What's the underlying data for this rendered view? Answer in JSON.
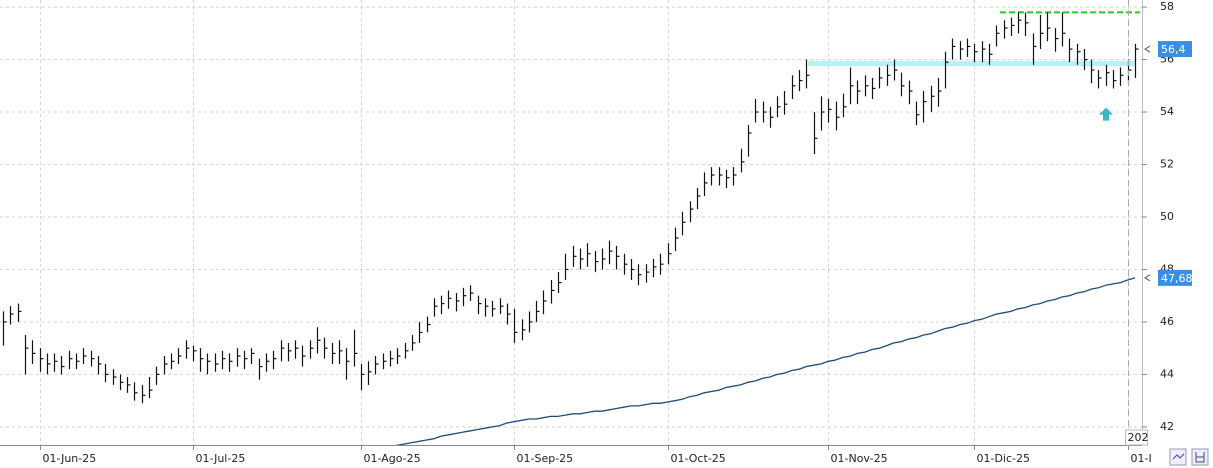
{
  "chart_data": {
    "type": "ohlc",
    "categories": [
      null,
      null,
      null,
      null,
      null,
      "01-Jun-25",
      null,
      null,
      null,
      null,
      null,
      null,
      null,
      null,
      null,
      null,
      null,
      null,
      null,
      null,
      null,
      null,
      null,
      null,
      null,
      null,
      "01-Jul-25",
      null,
      null,
      null,
      null,
      null,
      null,
      null,
      null,
      null,
      null,
      null,
      null,
      null,
      null,
      null,
      null,
      null,
      null,
      null,
      null,
      null,
      null,
      "01-Ago-25",
      null,
      null,
      null,
      null,
      null,
      null,
      null,
      null,
      null,
      null,
      null,
      null,
      null,
      null,
      null,
      null,
      null,
      null,
      null,
      null,
      "01-Sep-25",
      null,
      null,
      null,
      null,
      null,
      null,
      null,
      null,
      null,
      null,
      null,
      null,
      null,
      null,
      null,
      null,
      null,
      null,
      null,
      null,
      "01-Oct-25",
      null,
      null,
      null,
      null,
      null,
      null,
      null,
      null,
      null,
      null,
      null,
      null,
      null,
      null,
      null,
      null,
      null,
      null,
      null,
      null,
      null,
      "01-Nov-25",
      null,
      null,
      null,
      null,
      null,
      null,
      null,
      null,
      null,
      null,
      null,
      null,
      null,
      null,
      null,
      null,
      null,
      null,
      null,
      "01-Dic-25",
      null,
      null,
      null,
      null,
      null,
      null,
      null,
      null,
      null,
      null,
      null,
      null,
      null,
      null,
      null,
      null,
      null,
      null,
      null,
      null,
      "01-I",
      null
    ],
    "high": [
      46.4,
      46.6,
      46.7,
      45.5,
      45.3,
      45.0,
      44.8,
      44.8,
      44.7,
      44.9,
      44.8,
      45.0,
      44.9,
      44.7,
      44.4,
      44.2,
      44.0,
      43.9,
      43.7,
      43.6,
      43.9,
      44.3,
      44.7,
      44.8,
      45.0,
      45.3,
      45.1,
      45.0,
      44.8,
      44.8,
      44.9,
      44.8,
      45.0,
      44.9,
      45.0,
      44.6,
      44.8,
      44.9,
      45.3,
      45.2,
      45.3,
      45.1,
      45.3,
      45.8,
      45.4,
      45.2,
      45.3,
      45.0,
      45.7,
      44.4,
      44.5,
      44.7,
      44.8,
      44.9,
      45.0,
      45.2,
      45.5,
      46.0,
      46.2,
      46.9,
      47.0,
      47.2,
      47.1,
      47.3,
      47.4,
      47.0,
      46.9,
      46.8,
      46.9,
      46.7,
      46.5,
      46.1,
      46.4,
      46.8,
      47.2,
      47.6,
      47.9,
      48.6,
      48.9,
      48.8,
      49.0,
      48.7,
      48.8,
      49.1,
      48.9,
      48.6,
      48.4,
      48.2,
      48.2,
      48.4,
      48.6,
      49.0,
      49.6,
      50.2,
      50.6,
      51.1,
      51.7,
      51.9,
      51.9,
      51.8,
      51.9,
      52.6,
      53.5,
      54.5,
      54.4,
      54.2,
      54.6,
      54.8,
      55.4,
      55.6,
      56.0,
      54.0,
      54.6,
      54.5,
      54.4,
      54.7,
      55.7,
      55.2,
      55.4,
      55.3,
      55.7,
      55.8,
      56.0,
      55.5,
      55.2,
      54.4,
      54.8,
      55.0,
      55.3,
      56.3,
      56.8,
      56.7,
      56.8,
      56.6,
      56.7,
      56.6,
      57.3,
      57.5,
      57.6,
      57.8,
      57.8,
      57.0,
      57.7,
      57.8,
      57.2,
      57.8,
      56.8,
      56.6,
      56.4,
      56.0,
      55.6,
      55.8,
      55.6,
      55.7,
      56.0,
      56.6
    ],
    "low": [
      45.1,
      45.9,
      46.0,
      44.0,
      44.4,
      44.1,
      44.0,
      44.1,
      44.0,
      44.2,
      44.2,
      44.4,
      44.3,
      44.0,
      43.7,
      43.6,
      43.4,
      43.3,
      43.0,
      42.9,
      43.1,
      43.6,
      44.0,
      44.2,
      44.4,
      44.6,
      44.5,
      44.1,
      44.0,
      44.1,
      44.2,
      44.1,
      44.3,
      44.2,
      44.4,
      43.8,
      44.1,
      44.2,
      44.5,
      44.5,
      44.6,
      44.3,
      44.6,
      44.8,
      44.6,
      44.4,
      44.4,
      43.8,
      44.3,
      43.4,
      43.6,
      44.0,
      44.2,
      44.3,
      44.4,
      44.6,
      44.9,
      45.2,
      45.6,
      46.2,
      46.3,
      46.5,
      46.4,
      46.6,
      46.8,
      46.3,
      46.2,
      46.2,
      46.3,
      45.9,
      45.2,
      45.3,
      45.6,
      46.0,
      46.3,
      46.7,
      47.1,
      47.6,
      48.1,
      48.0,
      48.1,
      47.9,
      48.0,
      48.2,
      48.0,
      47.8,
      47.6,
      47.4,
      47.5,
      47.7,
      47.8,
      48.2,
      48.7,
      49.3,
      49.8,
      50.3,
      50.8,
      51.2,
      51.2,
      51.1,
      51.2,
      51.7,
      52.3,
      53.6,
      53.6,
      53.4,
      53.8,
      53.9,
      54.5,
      54.8,
      54.9,
      52.4,
      53.3,
      53.6,
      53.3,
      53.8,
      54.3,
      54.3,
      54.6,
      54.5,
      54.9,
      55.0,
      55.2,
      54.6,
      54.3,
      53.5,
      53.6,
      54.0,
      54.2,
      54.9,
      56.0,
      56.0,
      56.1,
      55.9,
      55.9,
      55.8,
      56.5,
      56.8,
      56.9,
      57.0,
      56.9,
      55.8,
      56.4,
      56.7,
      56.3,
      56.5,
      55.9,
      55.8,
      55.6,
      55.1,
      54.9,
      55.0,
      54.9,
      55.0,
      55.1,
      55.3
    ],
    "close": [
      46.0,
      46.3,
      46.4,
      45.0,
      44.8,
      44.6,
      44.4,
      44.5,
      44.3,
      44.6,
      44.5,
      44.7,
      44.6,
      44.4,
      44.0,
      43.9,
      43.7,
      43.6,
      43.3,
      43.2,
      43.4,
      44.0,
      44.4,
      44.5,
      44.7,
      45.0,
      44.9,
      44.6,
      44.5,
      44.4,
      44.6,
      44.5,
      44.7,
      44.6,
      44.8,
      44.3,
      44.5,
      44.6,
      45.0,
      44.9,
      45.0,
      44.7,
      45.0,
      45.3,
      45.0,
      44.8,
      44.9,
      44.5,
      44.8,
      44.0,
      44.1,
      44.4,
      44.5,
      44.6,
      44.7,
      44.9,
      45.2,
      45.6,
      45.9,
      46.6,
      46.7,
      46.9,
      46.8,
      47.0,
      47.1,
      46.7,
      46.6,
      46.5,
      46.6,
      46.3,
      45.6,
      45.7,
      46.0,
      46.4,
      46.8,
      47.2,
      47.5,
      48.0,
      48.5,
      48.4,
      48.6,
      48.3,
      48.4,
      48.7,
      48.5,
      48.2,
      48.0,
      47.8,
      47.9,
      48.1,
      48.2,
      48.6,
      49.2,
      49.8,
      50.3,
      50.8,
      51.3,
      51.6,
      51.6,
      51.5,
      51.6,
      52.1,
      53.2,
      54.0,
      54.0,
      53.8,
      54.2,
      54.3,
      55.0,
      55.2,
      55.4,
      53.0,
      54.0,
      54.1,
      53.8,
      54.2,
      55.0,
      54.8,
      55.0,
      54.9,
      55.3,
      55.4,
      55.6,
      55.0,
      54.8,
      53.9,
      54.4,
      54.6,
      54.8,
      55.9,
      56.5,
      56.4,
      56.5,
      56.3,
      56.4,
      56.2,
      57.0,
      57.2,
      57.3,
      57.5,
      57.4,
      56.5,
      57.0,
      57.2,
      56.8,
      57.0,
      56.4,
      56.3,
      56.0,
      55.6,
      55.3,
      55.5,
      55.2,
      55.4,
      55.6,
      56.4
    ],
    "color": "#111111",
    "ma": {
      "color": "#1f4e79",
      "values": [
        null,
        null,
        null,
        null,
        null,
        null,
        null,
        null,
        null,
        null,
        null,
        null,
        null,
        null,
        null,
        null,
        null,
        null,
        null,
        null,
        null,
        null,
        null,
        null,
        null,
        null,
        null,
        null,
        null,
        null,
        null,
        null,
        null,
        null,
        null,
        null,
        null,
        null,
        null,
        null,
        null,
        null,
        null,
        null,
        null,
        null,
        null,
        null,
        null,
        null,
        null,
        null,
        null,
        41.25,
        41.3,
        41.35,
        41.4,
        41.45,
        41.5,
        41.55,
        41.65,
        41.7,
        41.75,
        41.8,
        41.85,
        41.9,
        41.95,
        42.0,
        42.05,
        42.15,
        42.2,
        42.25,
        42.3,
        42.3,
        42.35,
        42.4,
        42.4,
        42.45,
        42.5,
        42.5,
        42.55,
        42.6,
        42.6,
        42.65,
        42.7,
        42.75,
        42.8,
        42.8,
        42.85,
        42.9,
        42.9,
        42.95,
        43.0,
        43.05,
        43.15,
        43.2,
        43.3,
        43.35,
        43.4,
        43.5,
        43.55,
        43.6,
        43.7,
        43.75,
        43.85,
        43.9,
        44.0,
        44.05,
        44.15,
        44.2,
        44.3,
        44.35,
        44.4,
        44.5,
        44.55,
        44.65,
        44.7,
        44.8,
        44.85,
        44.95,
        45.0,
        45.1,
        45.2,
        45.25,
        45.35,
        45.4,
        45.5,
        45.55,
        45.65,
        45.75,
        45.8,
        45.9,
        45.95,
        46.05,
        46.1,
        46.2,
        46.3,
        46.35,
        46.4,
        46.5,
        46.55,
        46.65,
        46.7,
        46.8,
        46.85,
        46.95,
        47.0,
        47.1,
        47.15,
        47.25,
        47.3,
        47.4,
        47.45,
        47.5,
        47.6,
        47.68
      ]
    },
    "ylim": [
      41.31,
      58.27
    ],
    "yticks": [
      42,
      44,
      46,
      48,
      50,
      52,
      54,
      56,
      58
    ],
    "grid": true,
    "price_tags": [
      {
        "value": 56.4,
        "label": "56,4"
      },
      {
        "value": 47.68,
        "label": "47,68"
      }
    ],
    "price_tag_color": "#3a8ee6",
    "resistance": {
      "value": 57.8,
      "color": "#22cc22"
    },
    "support_band": {
      "values": [
        55.75,
        55.95
      ],
      "color": "#b8f0f4"
    },
    "signal": {
      "value": 53.9,
      "color": "#3ab8c0"
    },
    "cursor_label": "202"
  }
}
